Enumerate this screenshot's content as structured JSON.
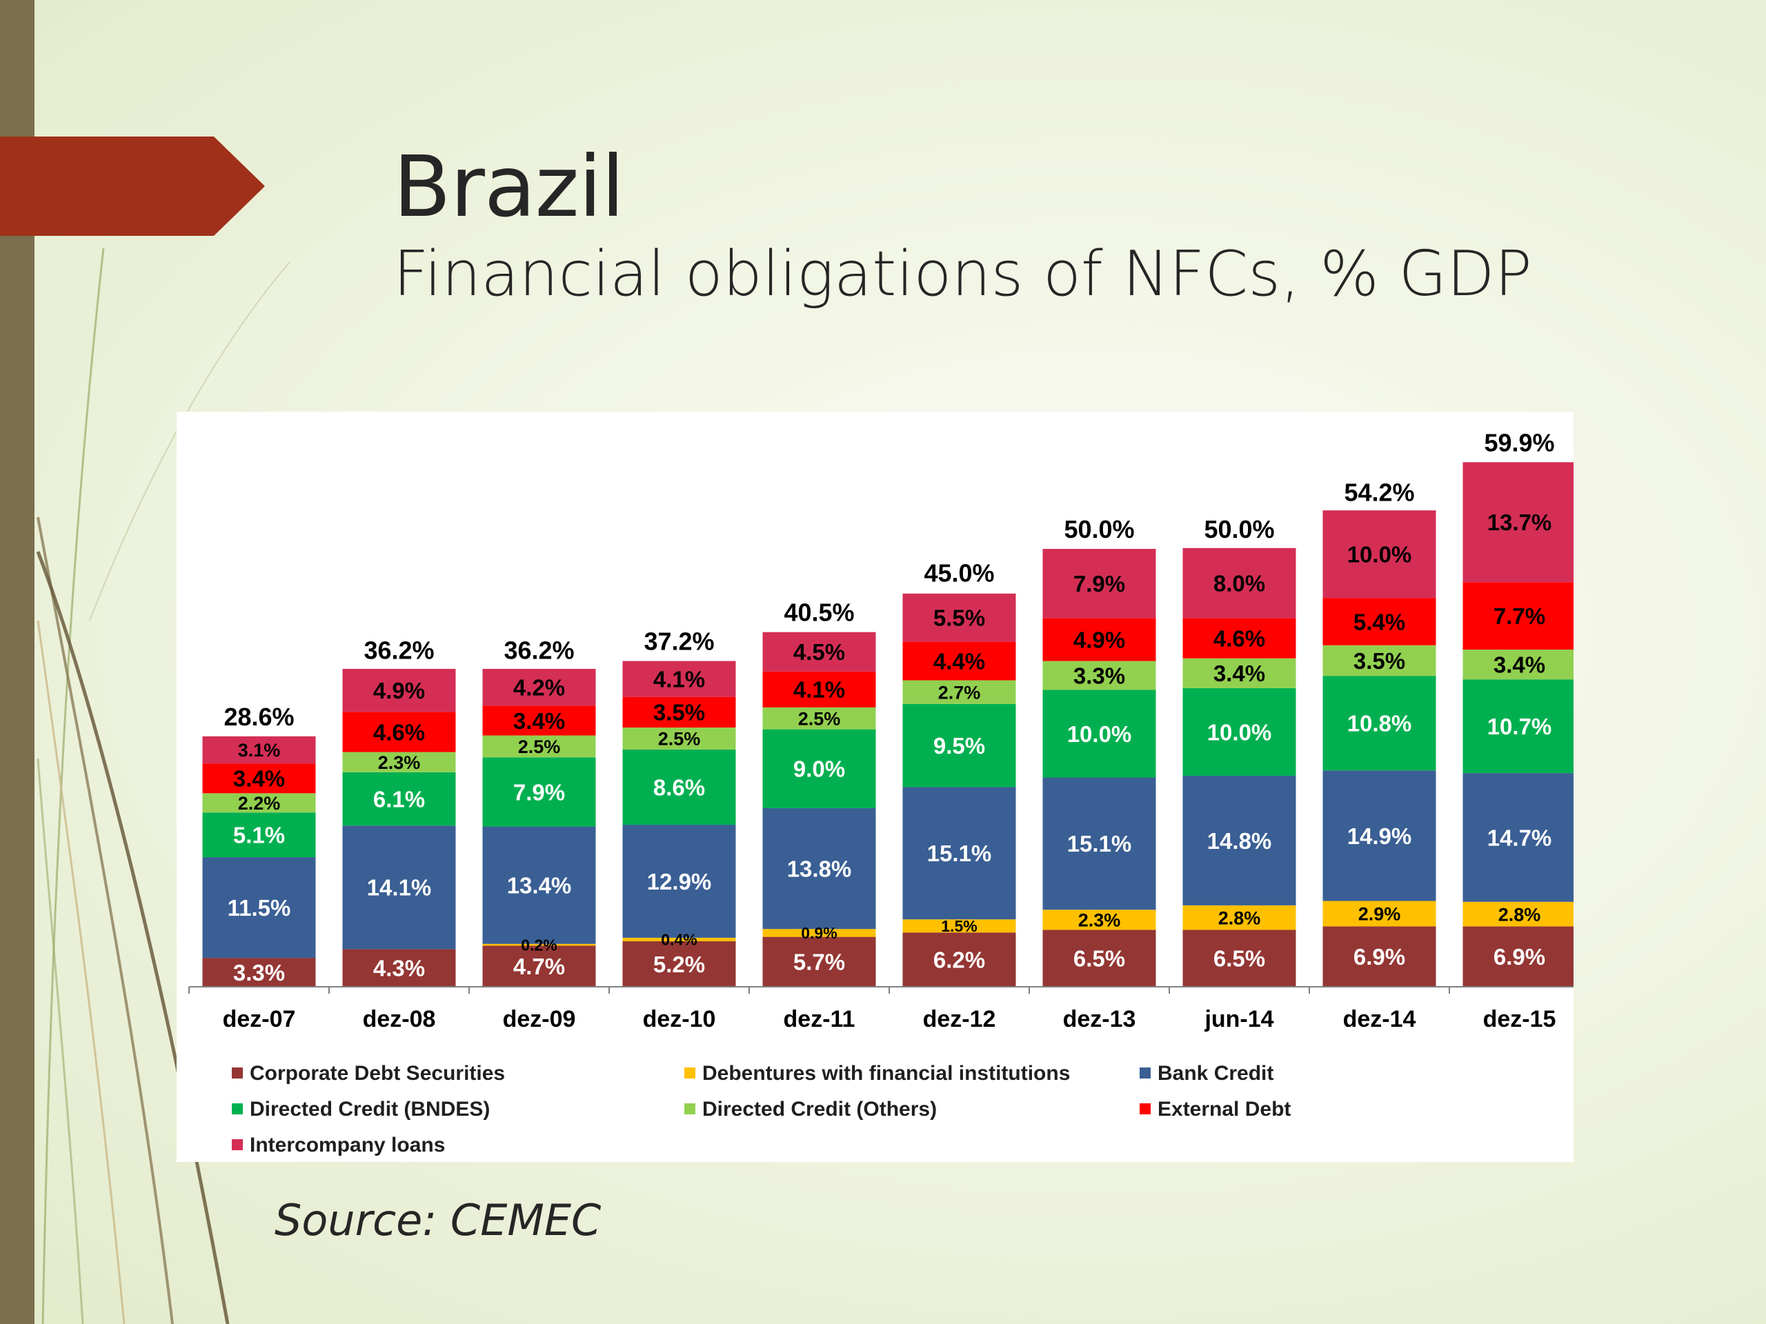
{
  "slide": {
    "title": "Brazil",
    "subtitle": "Financial obligations of NFCs, % GDP",
    "source": "Source: CEMEC"
  },
  "colors": {
    "corporate_debt": "#943634",
    "debentures": "#ffc000",
    "bank_credit": "#3a5f94",
    "bndes": "#00b050",
    "directed_others": "#92d050",
    "external_debt": "#ff0000",
    "intercompany": "#d42e55",
    "side_bar": "#7b6f4e",
    "arrow": "#a0301a"
  },
  "chart_data": {
    "type": "bar",
    "stacked": true,
    "categories": [
      "dez-07",
      "dez-08",
      "dez-09",
      "dez-10",
      "dez-11",
      "dez-12",
      "dez-13",
      "jun-14",
      "dez-14",
      "dez-15"
    ],
    "totals": [
      28.6,
      36.2,
      36.2,
      37.2,
      40.5,
      45.0,
      50.0,
      50.0,
      54.2,
      59.9
    ],
    "total_labels": [
      "28.6%",
      "36.2%",
      "36.2%",
      "37.2%",
      "40.5%",
      "45.0%",
      "50.0%",
      "50.0%",
      "54.2%",
      "59.9%"
    ],
    "series": [
      {
        "name": "Corporate Debt Securities",
        "color": "#943634",
        "label_color": "#ffffff",
        "values": [
          3.3,
          4.3,
          4.7,
          5.2,
          5.7,
          6.2,
          6.5,
          6.5,
          6.9,
          6.9
        ],
        "labels": [
          "3.3%",
          "4.3%",
          "4.7%",
          "5.2%",
          "5.7%",
          "6.2%",
          "6.5%",
          "6.5%",
          "6.9%",
          "6.9%"
        ]
      },
      {
        "name": "Debentures with financial institutions",
        "color": "#ffc000",
        "label_color": "#000000",
        "values": [
          null,
          null,
          0.2,
          0.4,
          0.9,
          1.5,
          2.3,
          2.8,
          2.9,
          2.8
        ],
        "labels": [
          "",
          "",
          "0.2%",
          "0.4%",
          "0.9%",
          "1.5%",
          "2.3%",
          "2.8%",
          "2.9%",
          "2.8%"
        ]
      },
      {
        "name": "Bank Credit",
        "color": "#3a5f94",
        "label_color": "#ffffff",
        "values": [
          11.5,
          14.1,
          13.4,
          12.9,
          13.8,
          15.1,
          15.1,
          14.8,
          14.9,
          14.7
        ],
        "labels": [
          "11.5%",
          "14.1%",
          "13.4%",
          "12.9%",
          "13.8%",
          "15.1%",
          "15.1%",
          "14.8%",
          "14.9%",
          "14.7%"
        ]
      },
      {
        "name": "Directed Credit (BNDES)",
        "color": "#00b050",
        "label_color": "#ffffff",
        "values": [
          5.1,
          6.1,
          7.9,
          8.6,
          9.0,
          9.5,
          10.0,
          10.0,
          10.8,
          10.7
        ],
        "labels": [
          "5.1%",
          "6.1%",
          "7.9%",
          "8.6%",
          "9.0%",
          "9.5%",
          "10.0%",
          "10.0%",
          "10.8%",
          "10.7%"
        ]
      },
      {
        "name": "Directed Credit (Others)",
        "color": "#92d050",
        "label_color": "#000000",
        "values": [
          2.2,
          2.3,
          2.5,
          2.5,
          2.5,
          2.7,
          3.3,
          3.4,
          3.5,
          3.4
        ],
        "labels": [
          "2.2%",
          "2.3%",
          "2.5%",
          "2.5%",
          "2.5%",
          "2.7%",
          "3.3%",
          "3.4%",
          "3.5%",
          "3.4%"
        ]
      },
      {
        "name": "External Debt",
        "color": "#ff0000",
        "label_color": "#000000",
        "values": [
          3.4,
          4.6,
          3.4,
          3.5,
          4.1,
          4.4,
          4.9,
          4.6,
          5.4,
          7.7
        ],
        "labels": [
          "3.4%",
          "4.6%",
          "3.4%",
          "3.5%",
          "4.1%",
          "4.4%",
          "4.9%",
          "4.6%",
          "5.4%",
          "7.7%"
        ]
      },
      {
        "name": "Intercompany loans",
        "color": "#d42e55",
        "label_color": "#000000",
        "values": [
          3.1,
          4.9,
          4.2,
          4.1,
          4.5,
          5.5,
          7.9,
          8.0,
          10.0,
          13.7
        ],
        "labels": [
          "3.1%",
          "4.9%",
          "4.2%",
          "4.1%",
          "4.5%",
          "5.5%",
          "7.9%",
          "8.0%",
          "10.0%",
          "13.7%"
        ]
      }
    ],
    "ylim": [
      0,
      62
    ],
    "grid": false,
    "legend_position": "bottom"
  }
}
